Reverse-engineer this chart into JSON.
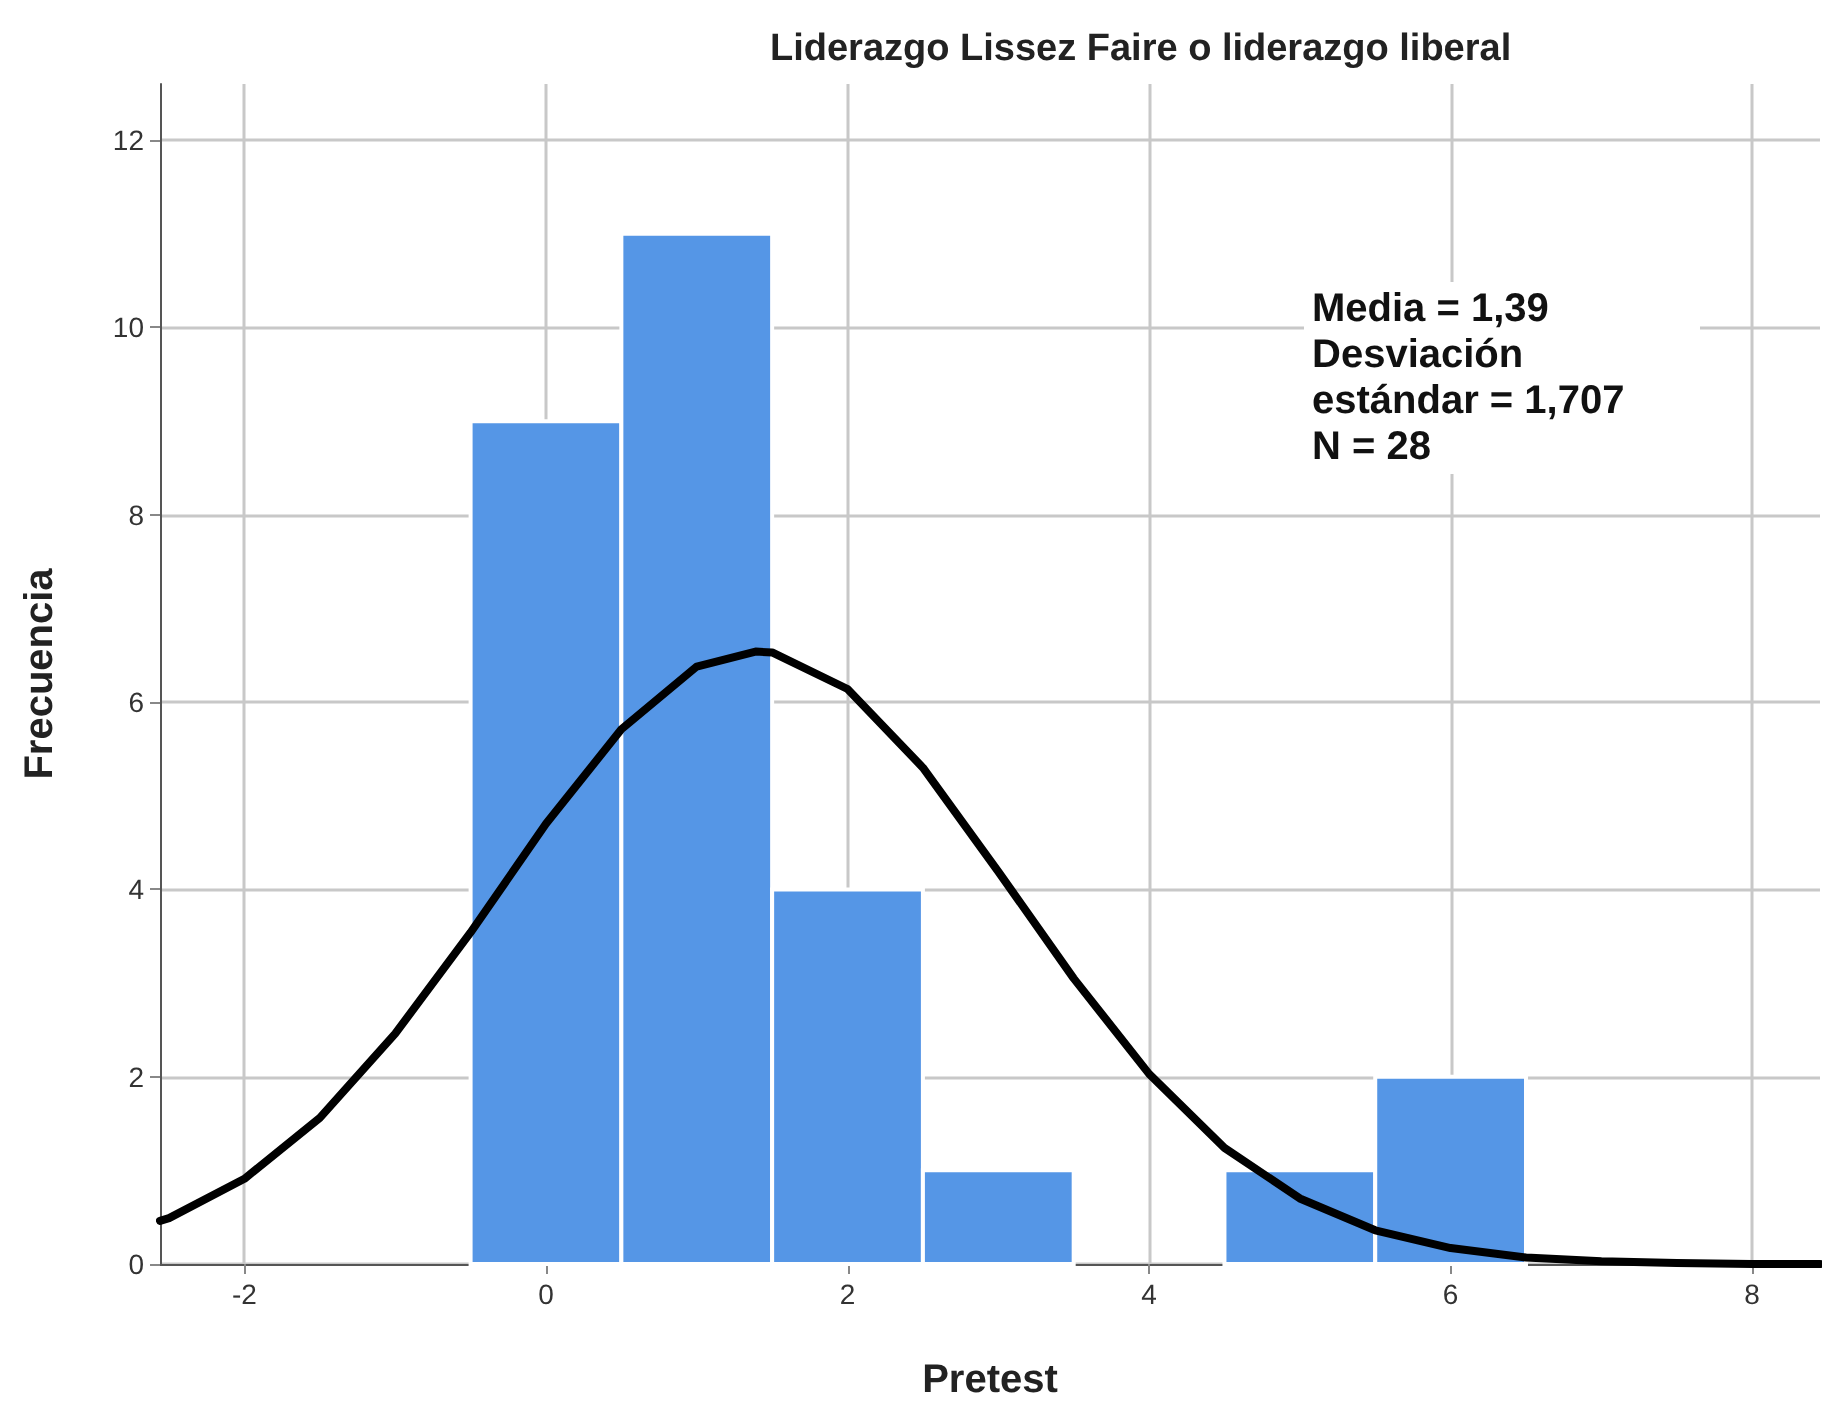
{
  "chart_data": {
    "type": "histogram",
    "title": "Liderazgo Lissez Faire o liderazgo liberal",
    "xlabel": "Pretest",
    "ylabel": "Frecuencia",
    "annotations": [
      "Media = 1,39",
      "Desviación estándar = 1,707",
      "N = 28"
    ],
    "series": [
      {
        "color": "#5596e6",
        "bins": [
          -0.5,
          0.5,
          1.5,
          2.5,
          3.5,
          4.5,
          5.5,
          6.5
        ],
        "values": [
          9,
          11,
          4,
          1,
          0,
          1,
          2
        ]
      },
      {
        "type": "line",
        "color": "#000000",
        "x": [
          -2.56,
          -2.5,
          -2,
          -1.5,
          -1,
          -0.5,
          0,
          0.5,
          1,
          1.39,
          1.5,
          2,
          2.5,
          3,
          3.5,
          4,
          4.5,
          5,
          5.5,
          6,
          6.5,
          7,
          7.5,
          8,
          8.45
        ],
        "values": [
          0.46,
          0.49,
          0.91,
          1.56,
          2.46,
          3.54,
          4.7,
          5.71,
          6.38,
          6.54,
          6.53,
          6.14,
          5.3,
          4.19,
          3.05,
          2.03,
          1.24,
          0.7,
          0.36,
          0.17,
          0.07,
          0.03,
          0.01,
          0,
          0
        ]
      }
    ],
    "xlim": [
      -2.56,
      8.45
    ],
    "xticks": [
      -2,
      0,
      2,
      4,
      6,
      8
    ],
    "ylim": [
      0,
      12.6
    ],
    "yticks": [
      0,
      2,
      4,
      6,
      8,
      10,
      12
    ],
    "grid": true,
    "marker": "none"
  }
}
